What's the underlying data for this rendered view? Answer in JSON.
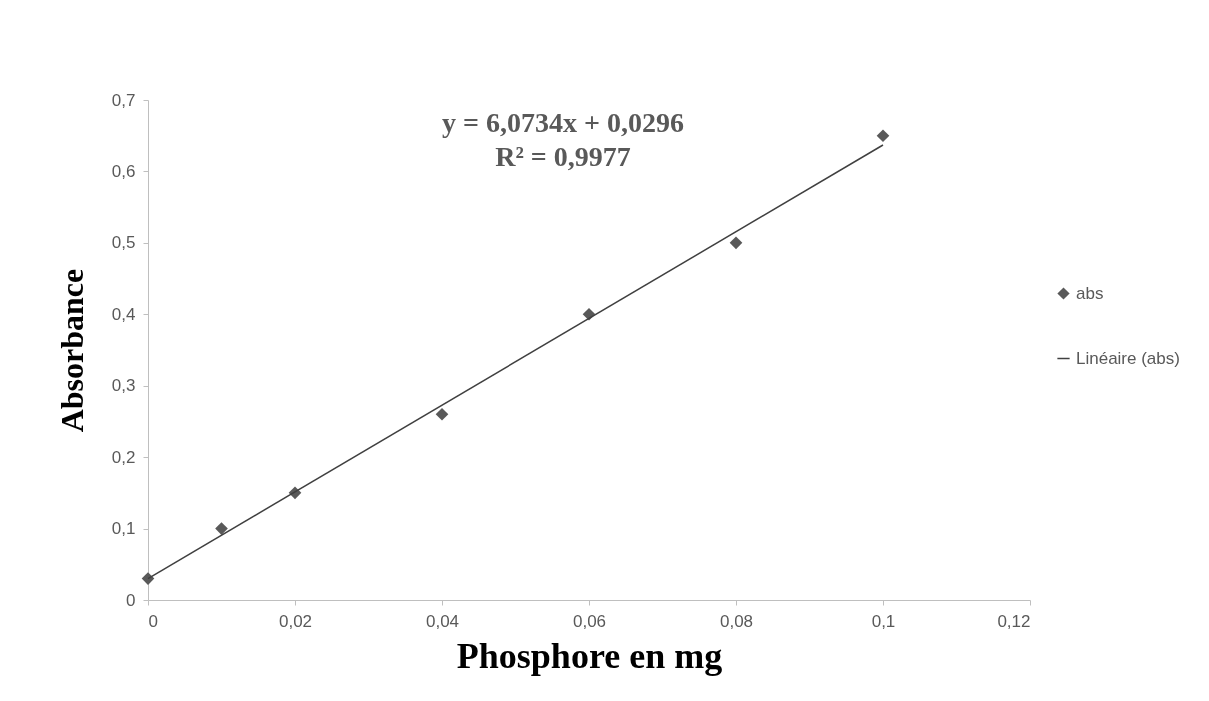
{
  "chart_data": {
    "type": "scatter",
    "xlabel": "Phosphore en mg",
    "ylabel": "Absorbance",
    "x": [
      0,
      0.01,
      0.02,
      0.04,
      0.06,
      0.08,
      0.1
    ],
    "series": [
      {
        "name": "abs",
        "color": "#595959",
        "marker": "diamond",
        "values": [
          0.03,
          0.1,
          0.15,
          0.26,
          0.4,
          0.5,
          0.65
        ]
      },
      {
        "name": "Linéaire (abs)",
        "type": "line",
        "color": "#404040",
        "line_style": "solid",
        "x": [
          0,
          0.1
        ],
        "values": [
          0.03,
          0.637
        ]
      }
    ],
    "xlim": [
      0,
      0.12
    ],
    "xticks": [
      {
        "value": 0,
        "label": "0"
      },
      {
        "value": 0.02,
        "label": "0,02"
      },
      {
        "value": 0.04,
        "label": "0,04"
      },
      {
        "value": 0.06,
        "label": "0,06"
      },
      {
        "value": 0.08,
        "label": "0,08"
      },
      {
        "value": 0.1,
        "label": "0,1"
      },
      {
        "value": 0.12,
        "label": "0,12"
      }
    ],
    "ylim": [
      0,
      0.7
    ],
    "yticks": [
      {
        "value": 0,
        "label": "0"
      },
      {
        "value": 0.1,
        "label": "0,1"
      },
      {
        "value": 0.2,
        "label": "0,2"
      },
      {
        "value": 0.3,
        "label": "0,3"
      },
      {
        "value": 0.4,
        "label": "0,4"
      },
      {
        "value": 0.5,
        "label": "0,5"
      },
      {
        "value": 0.6,
        "label": "0,6"
      },
      {
        "value": 0.7,
        "label": "0,7"
      }
    ],
    "annotations": [
      "y = 6,0734x + 0,0296",
      "R² = 0,9977"
    ],
    "grid": false,
    "legend": "right"
  }
}
